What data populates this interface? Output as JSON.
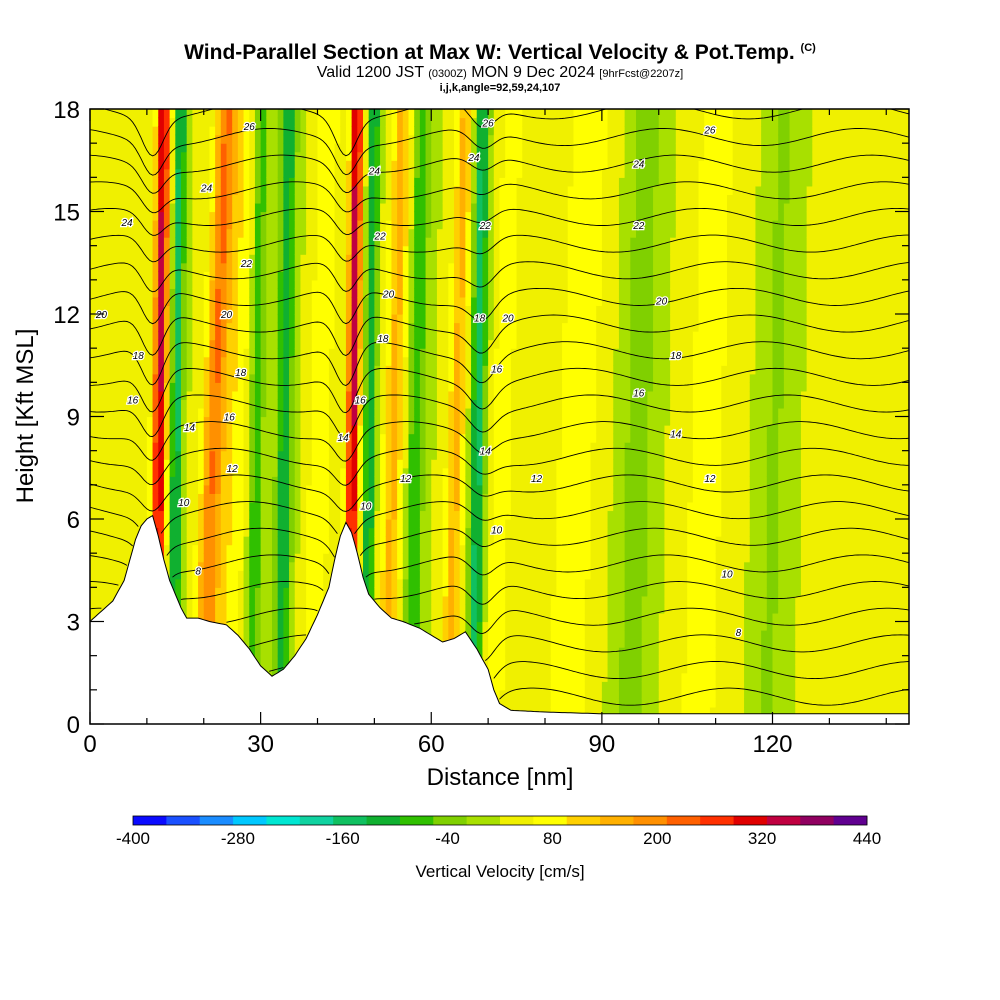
{
  "title": {
    "main": "Wind-Parallel Section at Max W: Vertical Velocity & Pot.Temp.",
    "mark": "(C)",
    "valid_prefix": "Valid 1200 JST",
    "valid_utc": "(0300Z)",
    "valid_date": "MON 9 Dec 2024",
    "forecast": "[9hrFcst@2207z]",
    "section_params": "i,j,k,angle=92,59,24,107"
  },
  "chart_data": {
    "type": "heatmap",
    "xlabel": "Distance [nm]",
    "ylabel": "Height [Kft MSL]",
    "xlim": [
      0,
      144
    ],
    "ylim": [
      0,
      18
    ],
    "x_ticks": [
      "0",
      "30",
      "60",
      "90",
      "120"
    ],
    "x_tick_values": [
      0,
      30,
      60,
      90,
      120
    ],
    "y_ticks": [
      "0",
      "3",
      "6",
      "9",
      "12",
      "15",
      "18"
    ],
    "y_tick_values": [
      0,
      3,
      6,
      9,
      12,
      15,
      18
    ],
    "colorbar": {
      "label": "Vertical Velocity [cm/s]",
      "tick_labels": [
        "-400",
        "-280",
        "-160",
        "-40",
        "80",
        "200",
        "320",
        "440"
      ],
      "tick_values": [
        -400,
        -280,
        -160,
        -40,
        80,
        200,
        320,
        440
      ],
      "levels": [
        -400,
        -360,
        -320,
        -280,
        -240,
        -200,
        -160,
        -120,
        -80,
        -40,
        0,
        40,
        80,
        120,
        160,
        200,
        240,
        280,
        320,
        360,
        400,
        440
      ],
      "colors": [
        "#0a0aff",
        "#1a50ff",
        "#1a8cff",
        "#00c8ff",
        "#00e6d2",
        "#10d2a0",
        "#10c060",
        "#10b030",
        "#30c000",
        "#80d000",
        "#a8e000",
        "#f0f000",
        "#ffff00",
        "#ffd000",
        "#ffb000",
        "#ff9000",
        "#ff6000",
        "#ff3000",
        "#e00000",
        "#c00040",
        "#900060",
        "#600090"
      ]
    },
    "terrain_kft": [
      [
        0,
        3.0
      ],
      [
        2,
        3.3
      ],
      [
        4,
        3.6
      ],
      [
        6,
        4.2
      ],
      [
        7,
        4.8
      ],
      [
        8,
        5.4
      ],
      [
        9,
        5.8
      ],
      [
        10,
        6.0
      ],
      [
        11,
        6.1
      ],
      [
        12,
        5.5
      ],
      [
        13,
        4.8
      ],
      [
        14,
        4.2
      ],
      [
        15,
        3.8
      ],
      [
        16,
        3.4
      ],
      [
        17,
        3.1
      ],
      [
        19,
        3.1
      ],
      [
        21,
        3.0
      ],
      [
        24,
        2.9
      ],
      [
        26,
        2.6
      ],
      [
        28,
        2.2
      ],
      [
        30,
        1.7
      ],
      [
        32,
        1.4
      ],
      [
        34,
        1.6
      ],
      [
        36,
        2.0
      ],
      [
        38,
        2.5
      ],
      [
        40,
        3.2
      ],
      [
        42,
        4.0
      ],
      [
        43,
        4.8
      ],
      [
        44,
        5.5
      ],
      [
        45,
        5.9
      ],
      [
        46,
        5.6
      ],
      [
        47,
        5.0
      ],
      [
        48,
        4.3
      ],
      [
        49,
        3.8
      ],
      [
        51,
        3.4
      ],
      [
        53,
        3.1
      ],
      [
        55,
        3.0
      ],
      [
        58,
        2.8
      ],
      [
        60,
        2.6
      ],
      [
        62,
        2.4
      ],
      [
        64,
        2.5
      ],
      [
        66,
        2.7
      ],
      [
        68,
        2.2
      ],
      [
        70,
        1.6
      ],
      [
        71,
        1.0
      ],
      [
        72,
        0.6
      ],
      [
        74,
        0.4
      ],
      [
        80,
        0.35
      ],
      [
        90,
        0.3
      ],
      [
        110,
        0.3
      ],
      [
        125,
        0.3
      ],
      [
        144,
        0.3
      ]
    ],
    "theta_labels": [
      "8",
      "10",
      "12",
      "14",
      "16",
      "18",
      "20",
      "22",
      "24",
      "26"
    ],
    "theta_label_positions": [
      {
        "text": "26",
        "x": 28,
        "y": 17.5
      },
      {
        "text": "24",
        "x": 6.5,
        "y": 14.7
      },
      {
        "text": "24",
        "x": 20.5,
        "y": 15.7
      },
      {
        "text": "22",
        "x": 27.5,
        "y": 13.5
      },
      {
        "text": "20",
        "x": 2,
        "y": 12.0
      },
      {
        "text": "20",
        "x": 24,
        "y": 12.0
      },
      {
        "text": "18",
        "x": 8.5,
        "y": 10.8
      },
      {
        "text": "18",
        "x": 26.5,
        "y": 10.3
      },
      {
        "text": "16",
        "x": 7.5,
        "y": 9.5
      },
      {
        "text": "16",
        "x": 24.5,
        "y": 9.0
      },
      {
        "text": "14",
        "x": 17.5,
        "y": 8.7
      },
      {
        "text": "12",
        "x": 25,
        "y": 7.5
      },
      {
        "text": "10",
        "x": 16.5,
        "y": 6.5
      },
      {
        "text": "8",
        "x": 19,
        "y": 4.5
      },
      {
        "text": "24",
        "x": 50,
        "y": 16.2
      },
      {
        "text": "22",
        "x": 51,
        "y": 14.3
      },
      {
        "text": "20",
        "x": 52.5,
        "y": 12.6
      },
      {
        "text": "18",
        "x": 51.5,
        "y": 11.3
      },
      {
        "text": "16",
        "x": 47.5,
        "y": 9.5
      },
      {
        "text": "14",
        "x": 44.5,
        "y": 8.4
      },
      {
        "text": "12",
        "x": 55.5,
        "y": 7.2
      },
      {
        "text": "10",
        "x": 48.5,
        "y": 6.4
      },
      {
        "text": "24",
        "x": 67.5,
        "y": 16.6
      },
      {
        "text": "26",
        "x": 70,
        "y": 17.6
      },
      {
        "text": "22",
        "x": 69.5,
        "y": 14.6
      },
      {
        "text": "20",
        "x": 73.5,
        "y": 11.9
      },
      {
        "text": "18",
        "x": 68.5,
        "y": 11.9
      },
      {
        "text": "16",
        "x": 71.5,
        "y": 10.4
      },
      {
        "text": "14",
        "x": 69.5,
        "y": 8.0
      },
      {
        "text": "12",
        "x": 78.5,
        "y": 7.2
      },
      {
        "text": "10",
        "x": 71.5,
        "y": 5.7
      },
      {
        "text": "26",
        "x": 109,
        "y": 17.4
      },
      {
        "text": "24",
        "x": 96.5,
        "y": 16.4
      },
      {
        "text": "22",
        "x": 96.5,
        "y": 14.6
      },
      {
        "text": "20",
        "x": 100.5,
        "y": 12.4
      },
      {
        "text": "18",
        "x": 103,
        "y": 10.8
      },
      {
        "text": "16",
        "x": 96.5,
        "y": 9.7
      },
      {
        "text": "14",
        "x": 103,
        "y": 8.5
      },
      {
        "text": "12",
        "x": 109,
        "y": 7.2
      },
      {
        "text": "10",
        "x": 112,
        "y": 4.4
      },
      {
        "text": "8",
        "x": 114,
        "y": 2.7
      }
    ]
  }
}
